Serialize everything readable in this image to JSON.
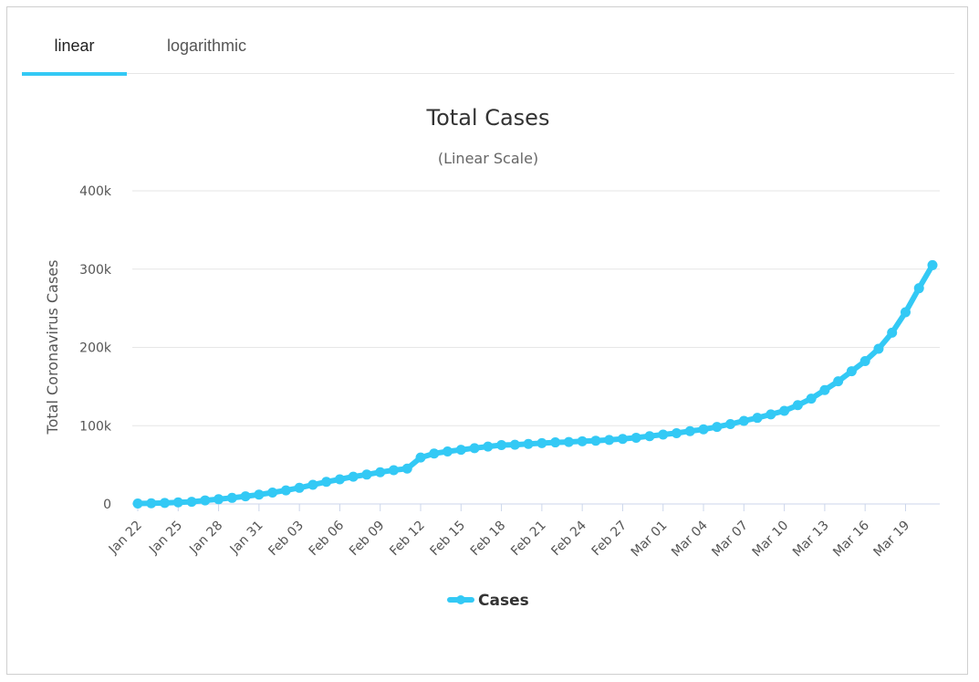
{
  "tabs": [
    {
      "label": "linear",
      "active": true
    },
    {
      "label": "logarithmic",
      "active": false
    }
  ],
  "colors": {
    "series": "#33c9f5",
    "grid": "#e6e6e6",
    "axis": "#ccd6eb"
  },
  "chart_data": {
    "type": "line",
    "title": "Total Cases",
    "subtitle": "(Linear Scale)",
    "ylabel": "Total Coronavirus Cases",
    "xlabel": "",
    "ylim": [
      0,
      400000
    ],
    "yticks": [
      0,
      100000,
      200000,
      300000,
      400000
    ],
    "ytick_labels": [
      "0",
      "100k",
      "200k",
      "300k",
      "400k"
    ],
    "legend": "bottom-center",
    "x": [
      "Jan 22",
      "Jan 23",
      "Jan 24",
      "Jan 25",
      "Jan 26",
      "Jan 27",
      "Jan 28",
      "Jan 29",
      "Jan 30",
      "Jan 31",
      "Feb 01",
      "Feb 02",
      "Feb 03",
      "Feb 04",
      "Feb 05",
      "Feb 06",
      "Feb 07",
      "Feb 08",
      "Feb 09",
      "Feb 10",
      "Feb 11",
      "Feb 12",
      "Feb 13",
      "Feb 14",
      "Feb 15",
      "Feb 16",
      "Feb 17",
      "Feb 18",
      "Feb 19",
      "Feb 20",
      "Feb 21",
      "Feb 22",
      "Feb 23",
      "Feb 24",
      "Feb 25",
      "Feb 26",
      "Feb 27",
      "Feb 28",
      "Feb 29",
      "Mar 01",
      "Mar 02",
      "Mar 03",
      "Mar 04",
      "Mar 05",
      "Mar 06",
      "Mar 07",
      "Mar 08",
      "Mar 09",
      "Mar 10",
      "Mar 11",
      "Mar 12",
      "Mar 13",
      "Mar 14",
      "Mar 15",
      "Mar 16",
      "Mar 17",
      "Mar 18",
      "Mar 19",
      "Mar 20",
      "Mar 21"
    ],
    "xtick_labels": [
      "Jan 22",
      "Jan 25",
      "Jan 28",
      "Jan 31",
      "Feb 03",
      "Feb 06",
      "Feb 09",
      "Feb 12",
      "Feb 15",
      "Feb 18",
      "Feb 21",
      "Feb 24",
      "Feb 27",
      "Mar 01",
      "Mar 04",
      "Mar 07",
      "Mar 10",
      "Mar 13",
      "Mar 16",
      "Mar 19"
    ],
    "series": [
      {
        "name": "Cases",
        "values": [
          580,
          845,
          1317,
          2015,
          2800,
          4581,
          6058,
          7813,
          9823,
          11950,
          14553,
          17391,
          20630,
          24545,
          28266,
          31439,
          34876,
          37552,
          40553,
          43099,
          45134,
          59287,
          64438,
          67100,
          69197,
          71329,
          73332,
          75184,
          75700,
          76677,
          77673,
          78651,
          79205,
          80087,
          80828,
          81820,
          83112,
          84615,
          86604,
          88585,
          90443,
          93016,
          95314,
          98425,
          102050,
          106099,
          109991,
          114381,
          118948,
          126214,
          134576,
          145483,
          156653,
          169593,
          182490,
          198238,
          218822,
          244933,
          275597,
          305036
        ]
      }
    ]
  }
}
